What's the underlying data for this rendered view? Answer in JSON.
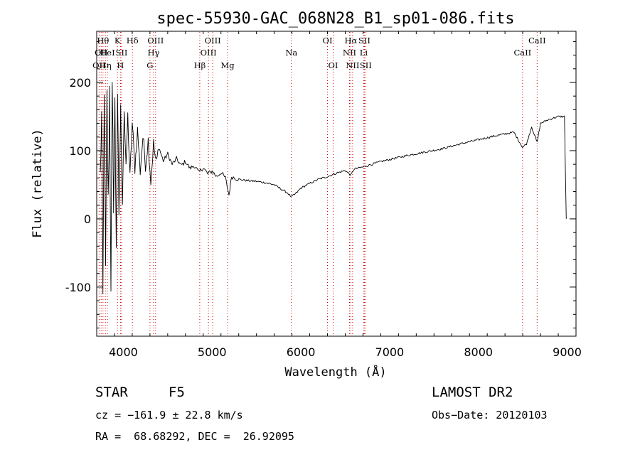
{
  "chart_data": {
    "type": "line",
    "title": "spec-55930-GAC_068N28_B1_sp01-086.fits",
    "xlabel": "Wavelength (Å)",
    "ylabel": "Flux (relative)",
    "xlim": [
      3700,
      9100
    ],
    "ylim": [
      -172,
      275
    ],
    "xticks": [
      4000,
      5000,
      6000,
      7000,
      8000,
      9000
    ],
    "yticks": [
      -100,
      0,
      100,
      200
    ],
    "grid": false,
    "line_color": "#000000",
    "marker_color": "#cc0000",
    "series": [
      {
        "values": [
          [
            3740,
            60
          ],
          [
            3755,
            150
          ],
          [
            3770,
            -120
          ],
          [
            3785,
            200
          ],
          [
            3800,
            -80
          ],
          [
            3815,
            175
          ],
          [
            3830,
            20
          ],
          [
            3845,
            190
          ],
          [
            3860,
            -90
          ],
          [
            3875,
            180
          ],
          [
            3890,
            30
          ],
          [
            3905,
            165
          ],
          [
            3920,
            -30
          ],
          [
            3935,
            160
          ],
          [
            3950,
            10
          ],
          [
            3970,
            150
          ],
          [
            3990,
            40
          ],
          [
            4010,
            160
          ],
          [
            4030,
            70
          ],
          [
            4050,
            150
          ],
          [
            4075,
            60
          ],
          [
            4100,
            140
          ],
          [
            4130,
            75
          ],
          [
            4160,
            130
          ],
          [
            4190,
            70
          ],
          [
            4220,
            120
          ],
          [
            4250,
            80
          ],
          [
            4280,
            115
          ],
          [
            4310,
            55
          ],
          [
            4340,
            110
          ],
          [
            4370,
            80
          ],
          [
            4400,
            105
          ],
          [
            4450,
            85
          ],
          [
            4500,
            95
          ],
          [
            4550,
            80
          ],
          [
            4600,
            88
          ],
          [
            4650,
            78
          ],
          [
            4700,
            84
          ],
          [
            4750,
            74
          ],
          [
            4800,
            78
          ],
          [
            4850,
            68
          ],
          [
            4900,
            75
          ],
          [
            4950,
            66
          ],
          [
            5000,
            70
          ],
          [
            5050,
            62
          ],
          [
            5100,
            68
          ],
          [
            5150,
            60
          ],
          [
            5190,
            35
          ],
          [
            5220,
            62
          ],
          [
            5300,
            58
          ],
          [
            5400,
            56
          ],
          [
            5500,
            55
          ],
          [
            5600,
            53
          ],
          [
            5700,
            50
          ],
          [
            5800,
            42
          ],
          [
            5850,
            38
          ],
          [
            5893,
            32
          ],
          [
            5950,
            38
          ],
          [
            6000,
            45
          ],
          [
            6100,
            52
          ],
          [
            6200,
            58
          ],
          [
            6300,
            62
          ],
          [
            6400,
            67
          ],
          [
            6500,
            71
          ],
          [
            6563,
            64
          ],
          [
            6600,
            73
          ],
          [
            6700,
            76
          ],
          [
            6800,
            80
          ],
          [
            6900,
            84
          ],
          [
            7000,
            87
          ],
          [
            7200,
            93
          ],
          [
            7400,
            98
          ],
          [
            7600,
            103
          ],
          [
            7800,
            110
          ],
          [
            8000,
            116
          ],
          [
            8200,
            122
          ],
          [
            8400,
            127
          ],
          [
            8498,
            105
          ],
          [
            8542,
            110
          ],
          [
            8600,
            135
          ],
          [
            8662,
            112
          ],
          [
            8700,
            140
          ],
          [
            8800,
            146
          ],
          [
            8900,
            150
          ],
          [
            8970,
            150
          ],
          [
            8990,
            0
          ]
        ]
      }
    ],
    "lines": [
      {
        "wl": 3727,
        "label": "OII",
        "row": 2
      },
      {
        "wl": 3750,
        "label": "OII",
        "row": 1
      },
      {
        "wl": 3771,
        "label": "Hθ",
        "row": 0
      },
      {
        "wl": 3798,
        "label": "Hη",
        "row": 2
      },
      {
        "wl": 3820,
        "label": "HeI",
        "row": 1
      },
      {
        "wl": 3934,
        "label": "K",
        "row": 0
      },
      {
        "wl": 3968,
        "label": "H",
        "row": 2
      },
      {
        "wl": 3980,
        "label": "SII",
        "row": 1
      },
      {
        "wl": 4102,
        "label": "Hδ",
        "row": 0
      },
      {
        "wl": 4300,
        "label": "G",
        "row": 2
      },
      {
        "wl": 4341,
        "label": "Hγ",
        "row": 1
      },
      {
        "wl": 4363,
        "label": "OIII",
        "row": 0
      },
      {
        "wl": 4861,
        "label": "Hβ",
        "row": 2
      },
      {
        "wl": 4959,
        "label": "OIII",
        "row": 1
      },
      {
        "wl": 5007,
        "label": "OIII",
        "row": 0
      },
      {
        "wl": 5175,
        "label": "Mg",
        "row": 2
      },
      {
        "wl": 5893,
        "label": "Na",
        "row": 1
      },
      {
        "wl": 6300,
        "label": "OI",
        "row": 0
      },
      {
        "wl": 6364,
        "label": "OI",
        "row": 2
      },
      {
        "wl": 6548,
        "label": "NII",
        "row": 1
      },
      {
        "wl": 6563,
        "label": "Hα",
        "row": 0
      },
      {
        "wl": 6583,
        "label": "NII",
        "row": 2
      },
      {
        "wl": 6716,
        "label": "SII",
        "row": 0
      },
      {
        "wl": 6708,
        "label": "Li",
        "row": 1
      },
      {
        "wl": 6731,
        "label": "SII",
        "row": 2
      },
      {
        "wl": 8498,
        "label": "CaII",
        "row": 1
      },
      {
        "wl": 8662,
        "label": "CaII",
        "row": 0
      }
    ]
  },
  "info": {
    "class_label": "STAR",
    "subclass": "F5",
    "cz": "cz = −161.9 ± 22.8 km/s",
    "coords": "RA =  68.68292, DEC =  26.92095",
    "survey": "LAMOST DR2",
    "obs_date": "Obs−Date: 20120103"
  }
}
